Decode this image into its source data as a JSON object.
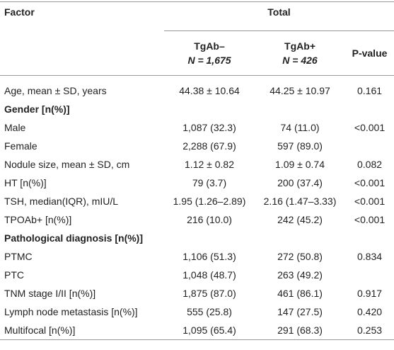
{
  "header": {
    "factor": "Factor",
    "total": "Total",
    "columns": [
      [
        "TgAb–",
        "N = 1,675"
      ],
      [
        "TgAb+",
        "N = 426"
      ],
      [
        "P-value"
      ]
    ]
  },
  "rows": [
    {
      "label": "Age, mean ± SD, years",
      "cells": [
        "44.38 ± 10.64",
        "44.25 ± 10.97",
        "0.161"
      ]
    },
    {
      "section": "Gender [n(%)]"
    },
    {
      "label": "Male",
      "cells": [
        "1,087 (32.3)",
        "74 (11.0)",
        "<0.001"
      ]
    },
    {
      "label": "Female",
      "cells": [
        "2,288 (67.9)",
        "597 (89.0)"
      ]
    },
    {
      "label": "Nodule size, mean ± SD, cm",
      "cells": [
        "1.12 ± 0.82",
        "1.09 ± 0.74",
        "0.082"
      ]
    },
    {
      "label": "HT [n(%)]",
      "cells": [
        "79 (3.7)",
        "200 (37.4)",
        "<0.001"
      ]
    },
    {
      "label": "TSH, median(IQR), mIU/L",
      "cells": [
        "1.95 (1.26–2.89)",
        "2.16 (1.47–3.33)",
        "<0.001"
      ]
    },
    {
      "label": "TPOAb+ [n(%)]",
      "cells": [
        "216 (10.0)",
        "242 (45.2)",
        "<0.001"
      ]
    },
    {
      "section": "Pathological diagnosis [n(%)]"
    },
    {
      "label": "PTMC",
      "cells": [
        "1,106 (51.3)",
        "272 (50.8)",
        "0.834"
      ]
    },
    {
      "label": "PTC",
      "cells": [
        "1,048 (48.7)",
        "263 (49.2)"
      ]
    },
    {
      "label": "TNM stage I/II [n(%)]",
      "cells": [
        "1,875 (87.0)",
        "461 (86.1)",
        "0.917"
      ]
    },
    {
      "label": "Lymph node metastasis [n(%)]",
      "cells": [
        "555 (25.8)",
        "147 (27.5)",
        "0.420"
      ]
    },
    {
      "label": "Multifocal [n(%)]",
      "cells": [
        "1,095 (65.4)",
        "291 (68.3)",
        "0.253"
      ]
    }
  ]
}
